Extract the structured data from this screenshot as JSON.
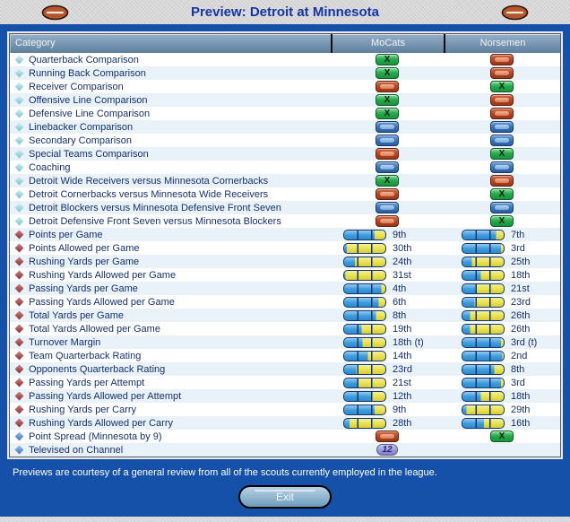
{
  "window": {
    "title": "Preview: Detroit at Minnesota",
    "footer_note": "Previews are courtesy of a general review from all of the scouts currently employed in the league.",
    "exit_label": "Exit"
  },
  "icons": {
    "advantage_glyph": "X"
  },
  "colors": {
    "panel_blue": "#1551a8",
    "title_text": "#1633a8",
    "header_steel": "#6f8fae",
    "advantage_green": "#22a246",
    "disadvantage_red": "#b44424",
    "even_blue": "#3a72b2",
    "bar_fill": "#2f96dc",
    "bar_empty": "#e8e040",
    "bar_divider": "#14356e",
    "channel_lavender": "#9494d4"
  },
  "table": {
    "headers": {
      "category": "Category",
      "team1": "MoCats",
      "team2": "Norsemen"
    },
    "rows": [
      {
        "type": "comparison",
        "label": "Quarterback Comparison",
        "team1": {
          "indicator": "advantage"
        },
        "team2": {
          "indicator": "disadvantage"
        }
      },
      {
        "type": "comparison",
        "label": "Running Back Comparison",
        "team1": {
          "indicator": "advantage"
        },
        "team2": {
          "indicator": "disadvantage"
        }
      },
      {
        "type": "comparison",
        "label": "Receiver Comparison",
        "team1": {
          "indicator": "disadvantage"
        },
        "team2": {
          "indicator": "advantage"
        }
      },
      {
        "type": "comparison",
        "label": "Offensive Line Comparison",
        "team1": {
          "indicator": "advantage"
        },
        "team2": {
          "indicator": "disadvantage"
        }
      },
      {
        "type": "comparison",
        "label": "Defensive Line Comparison",
        "team1": {
          "indicator": "advantage"
        },
        "team2": {
          "indicator": "disadvantage"
        }
      },
      {
        "type": "comparison",
        "label": "Linebacker Comparison",
        "team1": {
          "indicator": "even"
        },
        "team2": {
          "indicator": "even"
        }
      },
      {
        "type": "comparison",
        "label": "Secondary Comparison",
        "team1": {
          "indicator": "even"
        },
        "team2": {
          "indicator": "even"
        }
      },
      {
        "type": "comparison",
        "label": "Special Teams Comparison",
        "team1": {
          "indicator": "disadvantage"
        },
        "team2": {
          "indicator": "advantage"
        }
      },
      {
        "type": "comparison",
        "label": "Coaching",
        "team1": {
          "indicator": "even"
        },
        "team2": {
          "indicator": "even"
        }
      },
      {
        "type": "comparison",
        "label": "Detroit Wide Receivers versus Minnesota Cornerbacks",
        "team1": {
          "indicator": "advantage"
        },
        "team2": {
          "indicator": "disadvantage"
        }
      },
      {
        "type": "comparison",
        "label": "Detroit Cornerbacks versus Minnesota Wide Receivers",
        "team1": {
          "indicator": "disadvantage"
        },
        "team2": {
          "indicator": "advantage"
        }
      },
      {
        "type": "comparison",
        "label": "Detroit Blockers versus Minnesota Defensive Front Seven",
        "team1": {
          "indicator": "even"
        },
        "team2": {
          "indicator": "even"
        }
      },
      {
        "type": "comparison",
        "label": "Detroit Defensive Front Seven versus Minnesota Blockers",
        "team1": {
          "indicator": "disadvantage"
        },
        "team2": {
          "indicator": "advantage"
        }
      },
      {
        "type": "stat",
        "label": "Points per Game",
        "team1": {
          "rank": 9,
          "rank_label": "9th"
        },
        "team2": {
          "rank": 7,
          "rank_label": "7th"
        }
      },
      {
        "type": "stat",
        "label": "Points Allowed per Game",
        "team1": {
          "rank": 30,
          "rank_label": "30th"
        },
        "team2": {
          "rank": 3,
          "rank_label": "3rd"
        }
      },
      {
        "type": "stat",
        "label": "Rushing Yards per Game",
        "team1": {
          "rank": 24,
          "rank_label": "24th"
        },
        "team2": {
          "rank": 25,
          "rank_label": "25th"
        }
      },
      {
        "type": "stat",
        "label": "Rushing Yards Allowed per Game",
        "team1": {
          "rank": 31,
          "rank_label": "31st"
        },
        "team2": {
          "rank": 18,
          "rank_label": "18th"
        }
      },
      {
        "type": "stat",
        "label": "Passing Yards per Game",
        "team1": {
          "rank": 4,
          "rank_label": "4th"
        },
        "team2": {
          "rank": 21,
          "rank_label": "21st"
        }
      },
      {
        "type": "stat",
        "label": "Passing Yards Allowed per Game",
        "team1": {
          "rank": 6,
          "rank_label": "6th"
        },
        "team2": {
          "rank": 23,
          "rank_label": "23rd"
        }
      },
      {
        "type": "stat",
        "label": "Total Yards per Game",
        "team1": {
          "rank": 8,
          "rank_label": "8th"
        },
        "team2": {
          "rank": 26,
          "rank_label": "26th"
        }
      },
      {
        "type": "stat",
        "label": "Total Yards Allowed per Game",
        "team1": {
          "rank": 19,
          "rank_label": "19th"
        },
        "team2": {
          "rank": 26,
          "rank_label": "26th"
        }
      },
      {
        "type": "stat",
        "label": "Turnover Margin",
        "team1": {
          "rank": 18,
          "rank_label": "18th (t)"
        },
        "team2": {
          "rank": 3,
          "rank_label": "3rd (t)"
        }
      },
      {
        "type": "stat",
        "label": "Team Quarterback Rating",
        "team1": {
          "rank": 14,
          "rank_label": "14th"
        },
        "team2": {
          "rank": 2,
          "rank_label": "2nd"
        }
      },
      {
        "type": "stat",
        "label": "Opponents Quarterback Rating",
        "team1": {
          "rank": 23,
          "rank_label": "23rd"
        },
        "team2": {
          "rank": 8,
          "rank_label": "8th"
        }
      },
      {
        "type": "stat",
        "label": "Passing Yards per Attempt",
        "team1": {
          "rank": 21,
          "rank_label": "21st"
        },
        "team2": {
          "rank": 3,
          "rank_label": "3rd"
        }
      },
      {
        "type": "stat",
        "label": "Passing Yards Allowed per Attempt",
        "team1": {
          "rank": 12,
          "rank_label": "12th"
        },
        "team2": {
          "rank": 18,
          "rank_label": "18th"
        }
      },
      {
        "type": "stat",
        "label": "Rushing Yards per Carry",
        "team1": {
          "rank": 9,
          "rank_label": "9th"
        },
        "team2": {
          "rank": 29,
          "rank_label": "29th"
        }
      },
      {
        "type": "stat",
        "label": "Rushing Yards Allowed per Carry",
        "team1": {
          "rank": 28,
          "rank_label": "28th"
        },
        "team2": {
          "rank": 16,
          "rank_label": "16th"
        }
      },
      {
        "type": "info",
        "label": "Point Spread (Minnesota by 9)",
        "team1": {
          "indicator": "disadvantage"
        },
        "team2": {
          "indicator": "advantage"
        }
      },
      {
        "type": "info",
        "label": "Televised on Channel",
        "team1": {
          "badge": "12"
        },
        "team2": null
      }
    ]
  }
}
